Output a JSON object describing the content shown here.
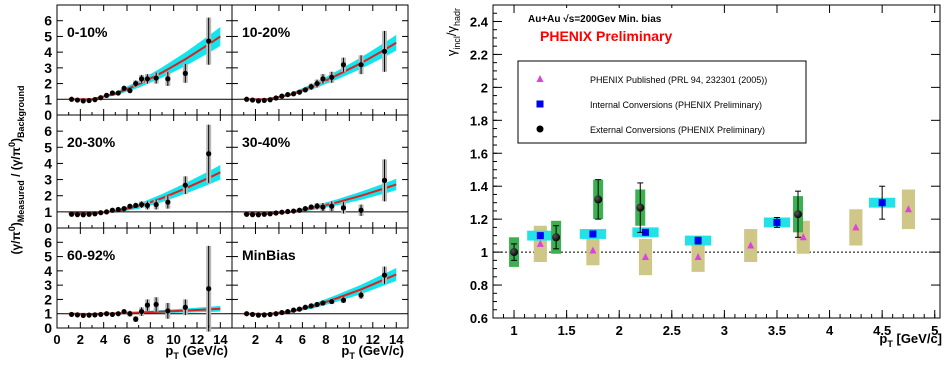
{
  "chart_data": {
    "left": {
      "type": "scatter",
      "ylabel": "(γ/π⁰)Measured / (γ/π⁰)Background",
      "xlabel": "pT (GeV/c)",
      "xlim": [
        0,
        15
      ],
      "ylim": [
        0,
        7
      ],
      "xticks": [
        0,
        2,
        4,
        6,
        8,
        10,
        12,
        14
      ],
      "yticks": [
        0,
        1,
        2,
        3,
        4,
        5,
        6
      ],
      "panels": [
        {
          "label": "0-10%",
          "points": [
            [
              1.25,
              1.0
            ],
            [
              1.75,
              0.95
            ],
            [
              2.25,
              0.9
            ],
            [
              2.75,
              0.92
            ],
            [
              3.25,
              0.98
            ],
            [
              3.75,
              1.1
            ],
            [
              4.25,
              1.25
            ],
            [
              4.75,
              1.4
            ],
            [
              5.25,
              1.4
            ],
            [
              5.75,
              1.7
            ],
            [
              6.25,
              1.55
            ],
            [
              6.75,
              2.0
            ],
            [
              7.25,
              2.3
            ],
            [
              7.75,
              2.3
            ],
            [
              8.5,
              2.35
            ],
            [
              9.5,
              2.3
            ],
            [
              11.0,
              2.65
            ],
            [
              13.0,
              4.7
            ]
          ],
          "errors": [
            0.05,
            0.05,
            0.05,
            0.05,
            0.05,
            0.05,
            0.1,
            0.1,
            0.1,
            0.12,
            0.15,
            0.2,
            0.25,
            0.3,
            0.35,
            0.45,
            0.6,
            1.5
          ],
          "model": [
            [
              1,
              1.0
            ],
            [
              3,
              1.0
            ],
            [
              5,
              1.35
            ],
            [
              7,
              1.95
            ],
            [
              9,
              2.7
            ],
            [
              11,
              3.55
            ],
            [
              13,
              4.5
            ],
            [
              14,
              5.0
            ]
          ],
          "band": 0.6
        },
        {
          "label": "10-20%",
          "points": [
            [
              1.25,
              1.0
            ],
            [
              1.75,
              0.95
            ],
            [
              2.25,
              0.9
            ],
            [
              2.75,
              0.93
            ],
            [
              3.25,
              0.97
            ],
            [
              3.75,
              1.08
            ],
            [
              4.25,
              1.2
            ],
            [
              4.75,
              1.3
            ],
            [
              5.25,
              1.35
            ],
            [
              5.75,
              1.45
            ],
            [
              6.25,
              1.6
            ],
            [
              6.75,
              1.8
            ],
            [
              7.25,
              2.0
            ],
            [
              7.75,
              2.3
            ],
            [
              8.5,
              2.4
            ],
            [
              9.5,
              3.2
            ],
            [
              11.0,
              3.2
            ],
            [
              13.0,
              4.05
            ]
          ],
          "errors": [
            0.05,
            0.05,
            0.05,
            0.05,
            0.05,
            0.05,
            0.1,
            0.1,
            0.1,
            0.12,
            0.15,
            0.2,
            0.25,
            0.3,
            0.35,
            0.45,
            0.6,
            1.3
          ],
          "model": [
            [
              1,
              1.0
            ],
            [
              3,
              1.0
            ],
            [
              5,
              1.3
            ],
            [
              7,
              1.85
            ],
            [
              9,
              2.55
            ],
            [
              11,
              3.3
            ],
            [
              13,
              4.15
            ],
            [
              14,
              4.6
            ]
          ],
          "band": 0.5
        },
        {
          "label": "20-30%",
          "points": [
            [
              1.25,
              0.85
            ],
            [
              1.75,
              0.83
            ],
            [
              2.25,
              0.82
            ],
            [
              2.75,
              0.85
            ],
            [
              3.25,
              0.88
            ],
            [
              3.75,
              0.95
            ],
            [
              4.25,
              1.0
            ],
            [
              4.75,
              1.1
            ],
            [
              5.25,
              1.15
            ],
            [
              5.75,
              1.2
            ],
            [
              6.25,
              1.35
            ],
            [
              6.75,
              1.4
            ],
            [
              7.25,
              1.45
            ],
            [
              7.75,
              1.4
            ],
            [
              8.5,
              1.45
            ],
            [
              9.5,
              1.6
            ],
            [
              11.0,
              2.65
            ],
            [
              13.0,
              4.6
            ]
          ],
          "errors": [
            0.05,
            0.05,
            0.05,
            0.05,
            0.05,
            0.05,
            0.08,
            0.08,
            0.1,
            0.1,
            0.12,
            0.15,
            0.2,
            0.25,
            0.3,
            0.4,
            0.55,
            1.8
          ],
          "model": [
            [
              1,
              0.9
            ],
            [
              3,
              0.9
            ],
            [
              5,
              1.05
            ],
            [
              7,
              1.35
            ],
            [
              9,
              1.85
            ],
            [
              11,
              2.45
            ],
            [
              13,
              3.1
            ],
            [
              14,
              3.45
            ]
          ],
          "band": 0.45
        },
        {
          "label": "30-40%",
          "points": [
            [
              1.25,
              0.85
            ],
            [
              1.75,
              0.83
            ],
            [
              2.25,
              0.82
            ],
            [
              2.75,
              0.85
            ],
            [
              3.25,
              0.88
            ],
            [
              3.75,
              0.93
            ],
            [
              4.25,
              0.98
            ],
            [
              4.75,
              1.02
            ],
            [
              5.25,
              1.05
            ],
            [
              5.75,
              1.1
            ],
            [
              6.25,
              1.2
            ],
            [
              6.75,
              1.3
            ],
            [
              7.25,
              1.35
            ],
            [
              7.75,
              1.3
            ],
            [
              8.5,
              1.35
            ],
            [
              9.5,
              1.25
            ],
            [
              11.0,
              1.1
            ],
            [
              13.0,
              2.95
            ]
          ],
          "errors": [
            0.05,
            0.05,
            0.05,
            0.05,
            0.05,
            0.05,
            0.08,
            0.08,
            0.1,
            0.1,
            0.12,
            0.15,
            0.2,
            0.25,
            0.3,
            0.35,
            0.35,
            1.3
          ],
          "model": [
            [
              1,
              0.88
            ],
            [
              3,
              0.88
            ],
            [
              5,
              1.0
            ],
            [
              7,
              1.25
            ],
            [
              9,
              1.6
            ],
            [
              11,
              2.0
            ],
            [
              13,
              2.45
            ],
            [
              14,
              2.7
            ]
          ],
          "band": 0.35
        },
        {
          "label": "60-92%",
          "points": [
            [
              1.25,
              0.95
            ],
            [
              1.75,
              0.92
            ],
            [
              2.25,
              0.88
            ],
            [
              2.75,
              0.9
            ],
            [
              3.25,
              0.92
            ],
            [
              3.75,
              0.95
            ],
            [
              4.25,
              1.0
            ],
            [
              4.75,
              0.95
            ],
            [
              5.25,
              1.0
            ],
            [
              5.75,
              1.15
            ],
            [
              6.25,
              1.0
            ],
            [
              6.75,
              0.62
            ],
            [
              7.25,
              1.15
            ],
            [
              7.75,
              1.6
            ],
            [
              8.5,
              1.65
            ],
            [
              9.5,
              1.2
            ],
            [
              11.0,
              1.45
            ],
            [
              13.0,
              2.75
            ]
          ],
          "errors": [
            0.05,
            0.05,
            0.05,
            0.05,
            0.05,
            0.05,
            0.1,
            0.1,
            0.15,
            0.15,
            0.2,
            0.2,
            0.3,
            0.4,
            0.5,
            0.55,
            0.55,
            3.0
          ],
          "model": [
            [
              1,
              1.0
            ],
            [
              3,
              0.98
            ],
            [
              5,
              1.02
            ],
            [
              7,
              1.08
            ],
            [
              9,
              1.15
            ],
            [
              11,
              1.22
            ],
            [
              13,
              1.3
            ],
            [
              14,
              1.35
            ]
          ],
          "band": 0.2
        },
        {
          "label": "MinBias",
          "points": [
            [
              1.25,
              1.0
            ],
            [
              1.75,
              0.95
            ],
            [
              2.25,
              0.9
            ],
            [
              2.75,
              0.92
            ],
            [
              3.25,
              0.95
            ],
            [
              3.75,
              1.0
            ],
            [
              4.25,
              1.08
            ],
            [
              4.75,
              1.15
            ],
            [
              5.25,
              1.25
            ],
            [
              5.75,
              1.32
            ],
            [
              6.25,
              1.45
            ],
            [
              6.75,
              1.55
            ],
            [
              7.25,
              1.65
            ],
            [
              7.75,
              1.75
            ],
            [
              8.5,
              1.85
            ],
            [
              9.5,
              1.95
            ],
            [
              11.0,
              2.3
            ],
            [
              13.0,
              3.7
            ]
          ],
          "errors": [
            0.05,
            0.05,
            0.05,
            0.05,
            0.05,
            0.05,
            0.05,
            0.06,
            0.07,
            0.08,
            0.09,
            0.1,
            0.12,
            0.14,
            0.16,
            0.2,
            0.25,
            0.6
          ],
          "model": [
            [
              1,
              1.0
            ],
            [
              3,
              0.98
            ],
            [
              5,
              1.15
            ],
            [
              7,
              1.55
            ],
            [
              9,
              2.1
            ],
            [
              11,
              2.7
            ],
            [
              13,
              3.4
            ],
            [
              14,
              3.75
            ]
          ],
          "band": 0.45
        }
      ]
    },
    "right": {
      "type": "scatter",
      "ylabel": "γincl/γhadr",
      "xlabel": "pT [GeV/c]",
      "xlim": [
        0.8,
        5.05
      ],
      "ylim": [
        0.6,
        2.5
      ],
      "xticks": [
        1,
        1.5,
        2,
        2.5,
        3,
        3.5,
        4,
        4.5,
        5
      ],
      "yticks": [
        0.6,
        0.8,
        1,
        1.2,
        1.4,
        1.6,
        1.8,
        2,
        2.2,
        2.4
      ],
      "info": "Au+Au √s=200Gev Min. bias",
      "title": "PHENIX Preliminary",
      "title_color": "#ff0000",
      "legend": [
        "PHENIX Published (PRL 94, 232301 (2005))",
        "Internal Conversions (PHENIX Preliminary)",
        "External Conversions (PHENIX Preliminary)"
      ],
      "series": [
        {
          "name": "PHENIX Published (PRL 94, 232301 (2005))",
          "color": "#e040e0",
          "box_color": "#cfc788",
          "box_w": 0.125,
          "points": [
            [
              1.25,
              1.05,
              0.11
            ],
            [
              1.75,
              1.01,
              0.09
            ],
            [
              2.25,
              0.97,
              0.11
            ],
            [
              2.75,
              0.97,
              0.09
            ],
            [
              3.25,
              1.04,
              0.1
            ],
            [
              3.75,
              1.09,
              0.1
            ],
            [
              4.25,
              1.15,
              0.11
            ],
            [
              4.75,
              1.26,
              0.12
            ]
          ]
        },
        {
          "name": "Internal Conversions (PHENIX Preliminary)",
          "color": "#0000ee",
          "box_color": "#22e2e8",
          "box_w": 0.25,
          "points": [
            [
              1.25,
              1.1,
              0.03
            ],
            [
              1.75,
              1.11,
              0.03
            ],
            [
              2.25,
              1.12,
              0.03
            ],
            [
              2.75,
              1.07,
              0.03
            ],
            [
              3.5,
              1.18,
              0.03
            ],
            [
              4.5,
              1.3,
              0.03
            ]
          ],
          "errors": [
            0.01,
            0.01,
            0.015,
            0.02,
            0.03,
            0.1
          ]
        },
        {
          "name": "External Conversions (PHENIX Preliminary)",
          "color": "#000000",
          "box_color": "#3cb050",
          "box_w": 0.095,
          "points": [
            [
              1.0,
              1.0,
              0.09
            ],
            [
              1.4,
              1.09,
              0.1
            ],
            [
              1.8,
              1.32,
              0.12
            ],
            [
              2.2,
              1.27,
              0.11
            ],
            [
              3.7,
              1.23,
              0.11
            ]
          ],
          "errors": [
            0.05,
            0.07,
            0.12,
            0.15,
            0.14
          ]
        }
      ],
      "reference_line": 1.0
    }
  }
}
